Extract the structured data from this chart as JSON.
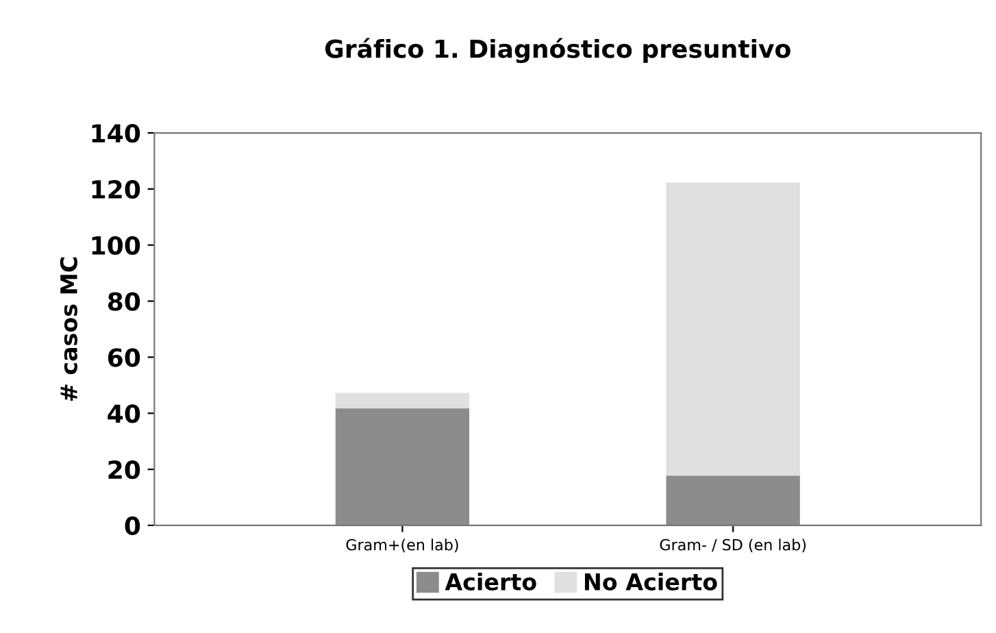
{
  "chart_data": {
    "type": "bar",
    "title": "Gráfico 1. Diagnóstico presuntivo",
    "ylabel": "# casos MC",
    "categories": [
      "Gram+(en lab)",
      "Gram- / SD (en lab)"
    ],
    "stacked": true,
    "series": [
      {
        "name": "Acierto",
        "color": "#8c8c8c",
        "values": [
          42,
          18
        ]
      },
      {
        "name": "No Acierto",
        "color": "#e0e0e0",
        "values": [
          5,
          104
        ]
      }
    ],
    "ylim": [
      0,
      140
    ],
    "yticks": [
      0,
      20,
      40,
      60,
      80,
      100,
      120,
      140
    ],
    "grid": false,
    "legend": "bottom"
  }
}
